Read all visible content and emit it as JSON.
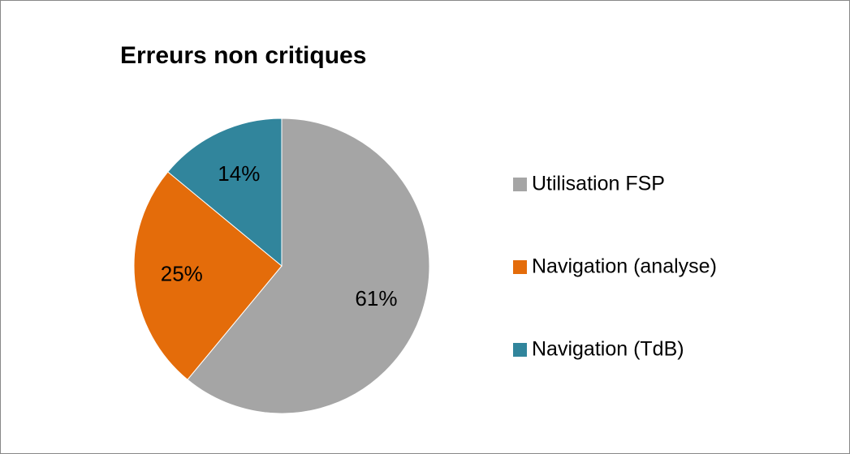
{
  "chart_data": {
    "type": "pie",
    "title": "Erreurs non critiques",
    "categories": [
      "Utilisation FSP",
      "Navigation (analyse)",
      "Navigation (TdB)"
    ],
    "values": [
      61,
      25,
      14
    ],
    "value_labels": [
      "61%",
      "25%",
      "14%"
    ],
    "colors": [
      "#a5a5a5",
      "#e46c0a",
      "#31859c"
    ],
    "legend": "right"
  }
}
